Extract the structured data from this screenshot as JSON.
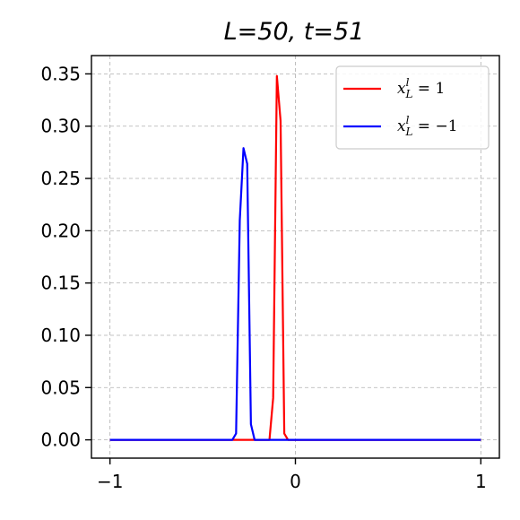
{
  "chart_data": {
    "type": "line",
    "title": "L=50, t=51",
    "xlim": [
      -1.1,
      1.1
    ],
    "ylim": [
      -0.0175,
      0.3675
    ],
    "x_ticks": [
      -1,
      0,
      1
    ],
    "x_tick_labels": [
      "−1",
      "0",
      "1"
    ],
    "y_ticks": [
      0.0,
      0.05,
      0.1,
      0.15,
      0.2,
      0.25,
      0.3,
      0.35
    ],
    "y_tick_labels": [
      "0.00",
      "0.05",
      "0.10",
      "0.15",
      "0.20",
      "0.25",
      "0.30",
      "0.35"
    ],
    "grid": true,
    "legend_position": "upper-right",
    "series": [
      {
        "name": "x_L^l = 1",
        "legend_main": "x",
        "legend_sup": "l",
        "legend_sub": "L",
        "legend_rest": " = 1",
        "color": "#ff0000",
        "x": [
          -1.0,
          -0.2,
          -0.18,
          -0.16,
          -0.14,
          -0.12,
          -0.1,
          -0.08,
          -0.06,
          -0.04,
          -0.02,
          0.0,
          1.0
        ],
        "y": [
          0.0,
          0.0,
          0.0,
          0.0,
          0.0,
          0.04,
          0.348,
          0.305,
          0.006,
          0.0,
          0.0,
          0.0,
          0.0
        ]
      },
      {
        "name": "x_L^l = −1",
        "legend_main": "x",
        "legend_sup": "l",
        "legend_sub": "L",
        "legend_rest": " = −1",
        "color": "#0000ff",
        "x": [
          -1.0,
          -0.38,
          -0.36,
          -0.34,
          -0.32,
          -0.3,
          -0.28,
          -0.26,
          -0.24,
          -0.22,
          -0.2,
          -0.18,
          1.0
        ],
        "y": [
          0.0,
          0.0,
          0.0,
          0.0,
          0.006,
          0.21,
          0.279,
          0.264,
          0.015,
          0.0,
          0.0,
          0.0,
          0.0
        ]
      }
    ]
  }
}
